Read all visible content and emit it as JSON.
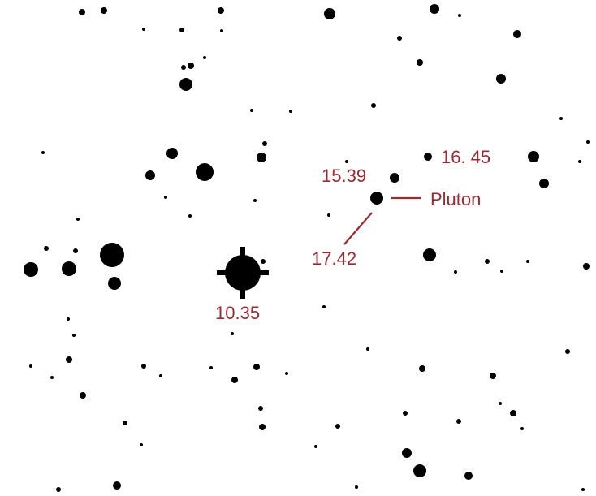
{
  "image": {
    "background": "#ffffff",
    "label_color": "#9b2a32",
    "star_color": "#000000"
  },
  "labels": {
    "mag_1035": "10.35",
    "mag_1539": "15.39",
    "mag_1645": "16. 45",
    "mag_1742": "17.42",
    "pluto": "Pluton"
  }
}
